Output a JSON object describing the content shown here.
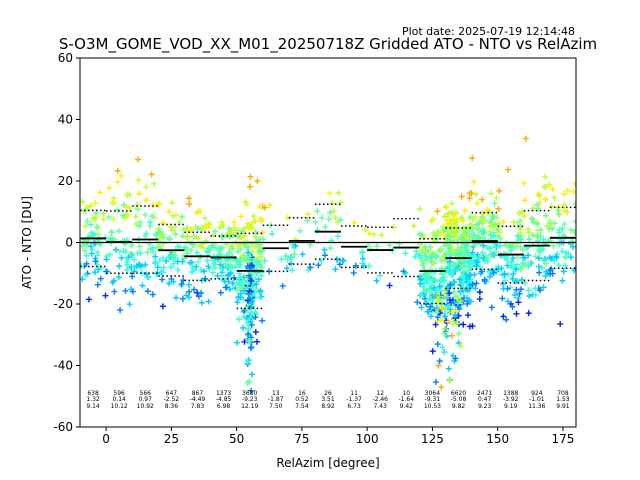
{
  "chart_data": {
    "type": "scatter",
    "title": "S-O3M_GOME_VOD_XX_M01_20250718Z Gridded ATO - NTO vs RelAzim",
    "plot_date": "Plot date: 2025-07-19 12:14:48",
    "xlabel": "RelAzim [degree]",
    "ylabel": "ATO - NTO [DU]",
    "xlim": [
      -10,
      180
    ],
    "ylim": [
      -60,
      60
    ],
    "xticks": [
      0,
      25,
      50,
      75,
      100,
      125,
      150,
      175
    ],
    "yticks": [
      -60,
      -40,
      -20,
      0,
      20,
      40,
      60
    ],
    "grid": false,
    "zero_line": 0,
    "colors": [
      "#0022ff",
      "#0080ff",
      "#00ccff",
      "#33ffdd",
      "#66ff99",
      "#bbff33",
      "#ffee00",
      "#ffaa00"
    ],
    "bins": [
      {
        "x0": -10,
        "x1": 0,
        "count": "638",
        "mean": "1.32",
        "std": "9.14"
      },
      {
        "x0": 0,
        "x1": 10,
        "count": "596",
        "mean": "0.14",
        "std": "10.12"
      },
      {
        "x0": 10,
        "x1": 20,
        "count": "566",
        "mean": "0.97",
        "std": "10.92"
      },
      {
        "x0": 20,
        "x1": 30,
        "count": "647",
        "mean": "-2.52",
        "std": "8.36"
      },
      {
        "x0": 30,
        "x1": 40,
        "count": "867",
        "mean": "-4.49",
        "std": "7.83"
      },
      {
        "x0": 40,
        "x1": 50,
        "count": "1373",
        "mean": "-4.85",
        "std": "6.98"
      },
      {
        "x0": 50,
        "x1": 60,
        "count": "3680",
        "mean": "-9.23",
        "std": "12.19"
      },
      {
        "x0": 60,
        "x1": 70,
        "count": "13",
        "mean": "-1.87",
        "std": "7.50"
      },
      {
        "x0": 70,
        "x1": 80,
        "count": "16",
        "mean": "0.52",
        "std": "7.54"
      },
      {
        "x0": 80,
        "x1": 90,
        "count": "26",
        "mean": "3.51",
        "std": "8.92"
      },
      {
        "x0": 90,
        "x1": 100,
        "count": "11",
        "mean": "-1.37",
        "std": "6.73"
      },
      {
        "x0": 100,
        "x1": 110,
        "count": "12",
        "mean": "-2.46",
        "std": "7.43"
      },
      {
        "x0": 110,
        "x1": 120,
        "count": "10",
        "mean": "-1.64",
        "std": "9.42"
      },
      {
        "x0": 120,
        "x1": 130,
        "count": "3064",
        "mean": "-9.31",
        "std": "10.53"
      },
      {
        "x0": 130,
        "x1": 140,
        "count": "6620",
        "mean": "-5.08",
        "std": "9.82"
      },
      {
        "x0": 140,
        "x1": 150,
        "count": "2471",
        "mean": "0.47",
        "std": "9.23"
      },
      {
        "x0": 150,
        "x1": 160,
        "count": "1388",
        "mean": "-3.92",
        "std": "9.19"
      },
      {
        "x0": 160,
        "x1": 170,
        "count": "924",
        "mean": "-1.01",
        "std": "11.36"
      },
      {
        "x0": 170,
        "x1": 180,
        "count": "708",
        "mean": "1.53",
        "std": "9.91"
      }
    ]
  }
}
